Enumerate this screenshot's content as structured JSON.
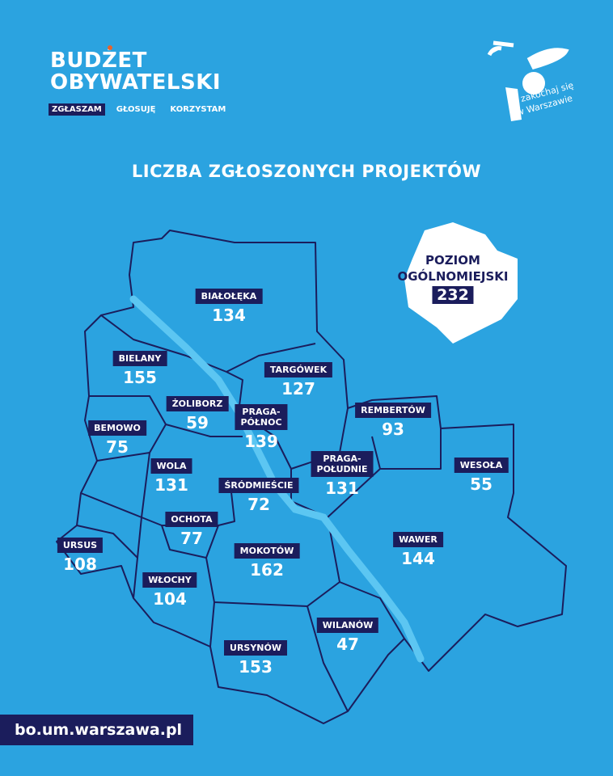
{
  "header": {
    "brand_line1": "BUDŻET",
    "brand_line2": "OBYWATELSKI",
    "tabs": [
      {
        "label": "ZGŁASZAM",
        "active": true
      },
      {
        "label": "GŁOSUJĘ"
      },
      {
        "label": "KORZYSTAM"
      }
    ],
    "logo_text": "zakochaj się w Warszawie"
  },
  "title": "LICZBA ZGŁOSZONYCH PROJEKTÓW",
  "citywide": {
    "label_line1": "POZIOM",
    "label_line2": "OGÓLNOMIEJSKI",
    "value": "232"
  },
  "districts": [
    {
      "name": "BIAŁOŁĘKA",
      "value": "134"
    },
    {
      "name": "BIELANY",
      "value": "155"
    },
    {
      "name": "TARGÓWEK",
      "value": "127"
    },
    {
      "name": "ŻOLIBORZ",
      "value": "59"
    },
    {
      "name": "PRAGA-\nPÓŁNOC",
      "value": "139"
    },
    {
      "name": "REMBERTÓW",
      "value": "93"
    },
    {
      "name": "BEMOWO",
      "value": "75"
    },
    {
      "name": "WOLA",
      "value": "131"
    },
    {
      "name": "PRAGA-\nPOŁUDNIE",
      "value": "131"
    },
    {
      "name": "WESOŁA",
      "value": "55"
    },
    {
      "name": "ŚRÓDMIEŚCIE",
      "value": "72"
    },
    {
      "name": "OCHOTA",
      "value": "77"
    },
    {
      "name": "URSUS",
      "value": "108"
    },
    {
      "name": "WAWER",
      "value": "144"
    },
    {
      "name": "MOKOTÓW",
      "value": "162"
    },
    {
      "name": "WŁOCHY",
      "value": "104"
    },
    {
      "name": "WILANÓW",
      "value": "47"
    },
    {
      "name": "URSYNÓW",
      "value": "153"
    }
  ],
  "footer": {
    "url": "bo.um.warszawa.pl"
  },
  "colors": {
    "background": "#2ba3e0",
    "navy": "#1b1d5c",
    "river": "#5cc6f2",
    "accent": "#e8632b"
  }
}
